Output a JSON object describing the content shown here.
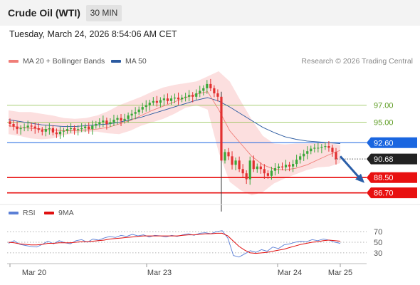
{
  "header": {
    "instrument": "Crude Oil (WTI)",
    "timeframe": "30 MIN",
    "datetime": "Tuesday, March 24, 2026 8:54:06 AM CET",
    "credit": "Research © 2026 Trading Central"
  },
  "price_legend": [
    {
      "label": "MA 20 + Bollinger Bands",
      "color": "#f07e78"
    },
    {
      "label": "MA 50",
      "color": "#2b5aa0"
    }
  ],
  "rsi_legend": [
    {
      "label": "RSI",
      "color": "#5b7fd6"
    },
    {
      "label": "9MA",
      "color": "#e01010"
    }
  ],
  "colors": {
    "up": "#3aa83a",
    "down": "#e23030",
    "resistance_green": "#8abf46",
    "support_red": "#e81010",
    "pivot_blue": "#1a66e0",
    "current_black": "#222222",
    "arrow": "#2a5ea8",
    "band_fill": "#fcd9d9"
  },
  "chart_data": {
    "type": "candlestick",
    "x_tick_labels": [
      "Mar 20",
      "Mar 23",
      "Mar 24",
      "Mar 25"
    ],
    "price_axis_ticks": [
      97.0,
      95.0
    ],
    "key_levels": [
      {
        "label": "97.00",
        "value": 97.0,
        "kind": "resistance"
      },
      {
        "label": "95.00",
        "value": 95.0,
        "kind": "resistance"
      },
      {
        "label": "92.60",
        "value": 92.6,
        "kind": "pivot"
      },
      {
        "label": "90.68",
        "value": 90.68,
        "kind": "current"
      },
      {
        "label": "88.50",
        "value": 88.5,
        "kind": "support"
      },
      {
        "label": "86.70",
        "value": 86.7,
        "kind": "support"
      }
    ],
    "close_prices": [
      94.8,
      94.5,
      94.2,
      94.3,
      94.4,
      94.6,
      94.5,
      94.3,
      94.1,
      93.9,
      94.2,
      94.3,
      93.8,
      93.6,
      93.9,
      94.0,
      94.2,
      94.3,
      94.1,
      94.2,
      94.3,
      94.5,
      94.2,
      94.6,
      94.8,
      95.0,
      95.2,
      94.8,
      95.0,
      95.3,
      95.5,
      95.2,
      95.4,
      95.8,
      96.0,
      96.2,
      96.5,
      96.8,
      97.0,
      97.3,
      97.5,
      97.3,
      97.6,
      97.8,
      97.5,
      97.8,
      97.9,
      97.7,
      97.9,
      98.0,
      98.2,
      98.0,
      98.4,
      98.7,
      99.0,
      99.5,
      99.0,
      98.4,
      98.0,
      90.5,
      91.5,
      91.0,
      90.0,
      90.5,
      89.5,
      89.0,
      88.3,
      90.5,
      89.5,
      89.8,
      89.5,
      89.0,
      88.7,
      89.3,
      89.6,
      89.8,
      89.7,
      90.0,
      89.8,
      90.1,
      90.6,
      91.0,
      91.3,
      91.6,
      91.9,
      92.0,
      92.0,
      92.1,
      92.2,
      92.0,
      91.5,
      90.68
    ],
    "price_range": [
      85.5,
      101.0
    ],
    "ma20_points": [
      94.6,
      94.4,
      94.3,
      94.2,
      94.1,
      94.0,
      94.0,
      94.1,
      94.2,
      94.4,
      94.8,
      95.2,
      95.8,
      96.4,
      96.9,
      97.4,
      97.9,
      98.3,
      98.6,
      96.5,
      94.0,
      92.5,
      91.0,
      90.0,
      89.5,
      89.4,
      89.6,
      90.0,
      90.6,
      91.2,
      91.7
    ],
    "ma50_points": [
      95.3,
      95.1,
      94.9,
      94.7,
      94.6,
      94.5,
      94.5,
      94.6,
      94.7,
      94.8,
      95.0,
      95.3,
      95.6,
      96.0,
      96.4,
      96.8,
      97.2,
      97.6,
      97.9,
      97.5,
      96.8,
      96.0,
      95.2,
      94.4,
      93.8,
      93.3,
      93.0,
      92.8,
      92.7,
      92.6,
      92.5
    ],
    "bollinger_band": {
      "upper": [
        96.4,
        96.2,
        96.2,
        96.0,
        95.8,
        95.5,
        95.4,
        95.5,
        95.8,
        96.3,
        97.0,
        97.5,
        98.0,
        98.6,
        99.1,
        99.4,
        99.6,
        99.8,
        100.4,
        101.0,
        99.8,
        97.5,
        95.3,
        93.4,
        92.5,
        92.4,
        92.5,
        92.5,
        92.6,
        92.6,
        92.3
      ],
      "lower": [
        93.6,
        93.4,
        93.1,
        93.0,
        93.1,
        93.5,
        93.7,
        93.9,
        93.9,
        93.7,
        93.6,
        94.0,
        94.6,
        95.0,
        95.4,
        96.0,
        96.7,
        97.0,
        96.5,
        91.5,
        88.0,
        87.0,
        86.4,
        86.8,
        87.8,
        88.4,
        88.9,
        89.4,
        89.7,
        89.8,
        90.2
      ]
    },
    "forecast_arrow": {
      "from": 91.0,
      "to": 88.2
    },
    "rsi": {
      "axis_ticks": [
        70,
        50,
        30
      ],
      "range": [
        15,
        85
      ],
      "rsi_values": [
        48,
        53,
        46,
        44,
        42,
        41,
        46,
        52,
        47,
        53,
        49,
        47,
        53,
        55,
        50,
        56,
        54,
        58,
        61,
        59,
        63,
        61,
        65,
        62,
        64,
        60,
        63,
        62,
        60,
        63,
        61,
        64,
        66,
        63,
        67,
        68,
        66,
        70,
        72,
        58,
        25,
        22,
        28,
        34,
        31,
        36,
        33,
        41,
        38,
        45,
        47,
        50,
        52,
        51,
        55,
        53,
        56,
        54,
        50,
        48
      ],
      "ma9_values": [
        50,
        49,
        47,
        46,
        45,
        45,
        46,
        48,
        48,
        49,
        49,
        49,
        50,
        51,
        51,
        52,
        53,
        54,
        56,
        57,
        58,
        59,
        60,
        61,
        62,
        62,
        62,
        62,
        62,
        62,
        62,
        63,
        64,
        64,
        65,
        66,
        66,
        67,
        67,
        62,
        52,
        42,
        35,
        30,
        29,
        30,
        31,
        33,
        35,
        37,
        40,
        43,
        46,
        48,
        50,
        51,
        53,
        54,
        53,
        52
      ]
    }
  }
}
